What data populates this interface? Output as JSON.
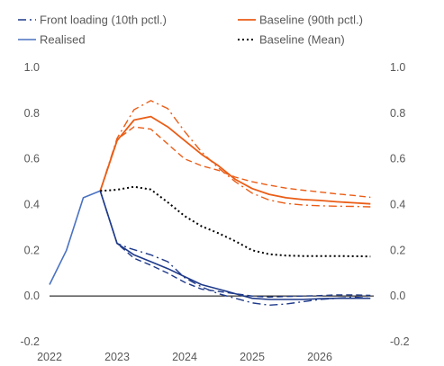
{
  "colors": {
    "blue_dark": "#1f3a8a",
    "blue_light": "#4a72c2",
    "orange": "#ea5d16",
    "black": "#000000",
    "text": "#595959"
  },
  "chart_data": {
    "type": "line",
    "title": "",
    "xlabel": "",
    "ylabel": "",
    "xlim": [
      2022,
      2026.8
    ],
    "ylim": [
      -0.2,
      1.0
    ],
    "y_ticks": [
      -0.2,
      0.0,
      0.2,
      0.4,
      0.6,
      0.8,
      1.0
    ],
    "y_tick_labels": [
      "-0.2",
      "0.0",
      "0.2",
      "0.4",
      "0.6",
      "0.8",
      "1.0"
    ],
    "x_ticks": [
      2022,
      2023,
      2024,
      2025,
      2026
    ],
    "x_tick_labels": [
      "2022",
      "2023",
      "2024",
      "2025",
      "2026"
    ],
    "dual_y_axis": true,
    "grid": false,
    "legend_position": "top",
    "legend": [
      {
        "label": "Front loading (10th pctl.)",
        "color": "#1f3a8a",
        "style": "dashdot",
        "width": 1.4
      },
      {
        "label": "Baseline (90th pctl.)",
        "color": "#ea5d16",
        "style": "solid",
        "width": 1.8
      },
      {
        "label": "Realised",
        "color": "#4a72c2",
        "style": "solid",
        "width": 1.6
      },
      {
        "label": "Baseline (Mean)",
        "color": "#000000",
        "style": "dotted",
        "width": 2
      }
    ],
    "series": [
      {
        "name": "Realised",
        "color": "#4a72c2",
        "style": "solid",
        "width": 1.6,
        "points": [
          [
            2022.0,
            0.05
          ],
          [
            2022.25,
            0.2
          ],
          [
            2022.5,
            0.43
          ],
          [
            2022.75,
            0.46
          ]
        ]
      },
      {
        "color": "#1f3a8a",
        "style": "dashdot",
        "width": 1.4,
        "points": [
          [
            2022.75,
            0.46
          ],
          [
            2023.0,
            0.23
          ],
          [
            2023.17,
            0.21
          ],
          [
            2023.5,
            0.18
          ],
          [
            2023.75,
            0.15
          ],
          [
            2024.0,
            0.08
          ],
          [
            2024.25,
            0.04
          ],
          [
            2024.5,
            0.01
          ],
          [
            2024.75,
            -0.01
          ],
          [
            2025.0,
            -0.03
          ],
          [
            2025.25,
            -0.04
          ],
          [
            2025.5,
            -0.035
          ],
          [
            2025.75,
            -0.025
          ],
          [
            2026.0,
            -0.015
          ],
          [
            2026.25,
            -0.01
          ],
          [
            2026.5,
            -0.005
          ],
          [
            2026.75,
            -0.01
          ]
        ]
      },
      {
        "color": "#1f3a8a",
        "style": "solid",
        "width": 1.6,
        "points": [
          [
            2022.75,
            0.46
          ],
          [
            2023.0,
            0.23
          ],
          [
            2023.25,
            0.18
          ],
          [
            2023.5,
            0.15
          ],
          [
            2023.75,
            0.12
          ],
          [
            2024.0,
            0.085
          ],
          [
            2024.25,
            0.05
          ],
          [
            2024.5,
            0.03
          ],
          [
            2024.75,
            0.01
          ],
          [
            2025.0,
            -0.01
          ],
          [
            2025.25,
            -0.015
          ],
          [
            2025.5,
            -0.015
          ],
          [
            2025.75,
            -0.015
          ],
          [
            2026.0,
            -0.012
          ],
          [
            2026.25,
            -0.01
          ],
          [
            2026.5,
            -0.01
          ],
          [
            2026.75,
            -0.01
          ]
        ]
      },
      {
        "color": "#1f3a8a",
        "style": "dashed",
        "width": 1.4,
        "points": [
          [
            2022.75,
            0.46
          ],
          [
            2023.0,
            0.23
          ],
          [
            2023.25,
            0.165
          ],
          [
            2023.5,
            0.135
          ],
          [
            2023.75,
            0.1
          ],
          [
            2024.0,
            0.06
          ],
          [
            2024.25,
            0.03
          ],
          [
            2024.5,
            0.02
          ],
          [
            2024.75,
            0.01
          ],
          [
            2025.0,
            0.0
          ],
          [
            2025.25,
            -0.005
          ],
          [
            2025.5,
            -0.002
          ],
          [
            2025.75,
            0.0
          ],
          [
            2026.0,
            0.002
          ],
          [
            2026.25,
            0.005
          ],
          [
            2026.5,
            0.005
          ],
          [
            2026.75,
            0.003
          ]
        ]
      },
      {
        "color": "#ea5d16",
        "style": "solid",
        "width": 1.8,
        "points": [
          [
            2022.75,
            0.46
          ],
          [
            2023.0,
            0.68
          ],
          [
            2023.25,
            0.77
          ],
          [
            2023.5,
            0.785
          ],
          [
            2023.75,
            0.74
          ],
          [
            2024.0,
            0.68
          ],
          [
            2024.25,
            0.62
          ],
          [
            2024.5,
            0.57
          ],
          [
            2024.75,
            0.51
          ],
          [
            2025.0,
            0.47
          ],
          [
            2025.25,
            0.445
          ],
          [
            2025.5,
            0.43
          ],
          [
            2025.75,
            0.422
          ],
          [
            2026.0,
            0.418
          ],
          [
            2026.25,
            0.412
          ],
          [
            2026.5,
            0.408
          ],
          [
            2026.75,
            0.403
          ]
        ]
      },
      {
        "color": "#ea5d16",
        "style": "dashdot",
        "width": 1.4,
        "points": [
          [
            2022.75,
            0.46
          ],
          [
            2023.0,
            0.69
          ],
          [
            2023.25,
            0.815
          ],
          [
            2023.5,
            0.855
          ],
          [
            2023.75,
            0.82
          ],
          [
            2024.0,
            0.72
          ],
          [
            2024.25,
            0.63
          ],
          [
            2024.5,
            0.56
          ],
          [
            2024.75,
            0.5
          ],
          [
            2025.0,
            0.45
          ],
          [
            2025.25,
            0.42
          ],
          [
            2025.5,
            0.405
          ],
          [
            2025.75,
            0.398
          ],
          [
            2026.0,
            0.395
          ],
          [
            2026.25,
            0.393
          ],
          [
            2026.5,
            0.392
          ],
          [
            2026.75,
            0.39
          ]
        ]
      },
      {
        "color": "#ea5d16",
        "style": "dashed",
        "width": 1.4,
        "points": [
          [
            2022.75,
            0.46
          ],
          [
            2023.0,
            0.685
          ],
          [
            2023.25,
            0.74
          ],
          [
            2023.5,
            0.73
          ],
          [
            2023.75,
            0.665
          ],
          [
            2024.0,
            0.6
          ],
          [
            2024.25,
            0.57
          ],
          [
            2024.5,
            0.55
          ],
          [
            2024.75,
            0.52
          ],
          [
            2025.0,
            0.5
          ],
          [
            2025.25,
            0.485
          ],
          [
            2025.5,
            0.472
          ],
          [
            2025.75,
            0.463
          ],
          [
            2026.0,
            0.455
          ],
          [
            2026.25,
            0.447
          ],
          [
            2026.5,
            0.44
          ],
          [
            2026.75,
            0.432
          ]
        ]
      },
      {
        "name": "Baseline (Mean)",
        "color": "#000000",
        "style": "dotted",
        "width": 2,
        "points": [
          [
            2022.75,
            0.46
          ],
          [
            2023.0,
            0.465
          ],
          [
            2023.25,
            0.478
          ],
          [
            2023.5,
            0.466
          ],
          [
            2023.75,
            0.41
          ],
          [
            2024.0,
            0.35
          ],
          [
            2024.25,
            0.305
          ],
          [
            2024.5,
            0.275
          ],
          [
            2024.75,
            0.24
          ],
          [
            2025.0,
            0.2
          ],
          [
            2025.25,
            0.183
          ],
          [
            2025.5,
            0.177
          ],
          [
            2025.75,
            0.175
          ],
          [
            2026.0,
            0.175
          ],
          [
            2026.25,
            0.175
          ],
          [
            2026.5,
            0.174
          ],
          [
            2026.75,
            0.173
          ]
        ]
      }
    ]
  }
}
